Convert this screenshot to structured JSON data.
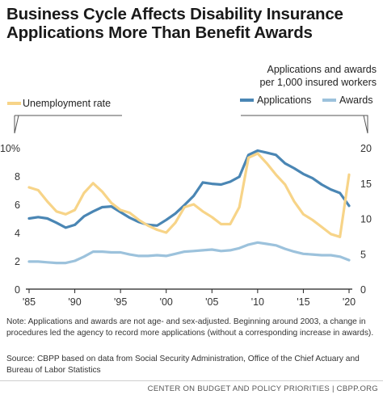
{
  "title_lines": [
    "Business Cycle Affects Disability Insurance",
    "Applications More Than Benefit Awards"
  ],
  "note": "Note: Applications and awards are not age- and sex-adjusted. Beginning around 2003, a change in procedures led the agency to record more applications (without a corresponding increase in awards).",
  "source": "Source: CBPP based on data from Social Security Administration, Office of the Chief Actuary and Bureau of Labor Statistics",
  "footer": "CENTER ON BUDGET AND POLICY PRIORITIES | CBPP.ORG",
  "colors": {
    "unemployment": "#f7d488",
    "applications": "#4a86b4",
    "awards": "#9cc2dc",
    "axis": "#222222",
    "bracket": "#555555"
  },
  "chart_data": {
    "type": "line",
    "left_axis": {
      "title": "Unemployment rate",
      "ylim": [
        0,
        10
      ],
      "ticks": [
        0,
        2,
        4,
        6,
        8,
        10
      ],
      "tick_labels": [
        "0",
        "2",
        "4",
        "6",
        "8",
        "10%"
      ]
    },
    "right_axis": {
      "title_lines": [
        "Applications and awards",
        "per 1,000 insured workers"
      ],
      "ylim": [
        0,
        20
      ],
      "ticks": [
        0,
        5,
        10,
        15,
        20
      ],
      "tick_labels": [
        "0",
        "5",
        "10",
        "15",
        "20"
      ]
    },
    "x_axis": {
      "xlim": [
        1985,
        2020
      ],
      "ticks": [
        1985,
        1990,
        1995,
        2000,
        2005,
        2010,
        2015,
        2020
      ],
      "tick_labels": [
        "'85",
        "'90",
        "'95",
        "'00",
        "'05",
        "'10",
        "'15",
        "'20"
      ]
    },
    "grid": false,
    "legend": [
      {
        "name": "Applications",
        "series": "applications"
      },
      {
        "name": "Awards",
        "series": "awards"
      }
    ],
    "x": [
      1985,
      1986,
      1987,
      1988,
      1989,
      1990,
      1991,
      1992,
      1993,
      1994,
      1995,
      1996,
      1997,
      1998,
      1999,
      2000,
      2001,
      2002,
      2003,
      2004,
      2005,
      2006,
      2007,
      2008,
      2009,
      2010,
      2011,
      2012,
      2013,
      2014,
      2015,
      2016,
      2017,
      2018,
      2019,
      2020
    ],
    "series": [
      {
        "name": "Unemployment rate",
        "key": "unemployment",
        "axis": "left",
        "values": [
          7.2,
          7.0,
          6.2,
          5.5,
          5.3,
          5.6,
          6.8,
          7.5,
          6.9,
          6.1,
          5.6,
          5.4,
          4.9,
          4.5,
          4.2,
          4.0,
          4.7,
          5.8,
          6.0,
          5.5,
          5.1,
          4.6,
          4.6,
          5.8,
          9.3,
          9.6,
          8.9,
          8.1,
          7.4,
          6.2,
          5.3,
          4.9,
          4.4,
          3.9,
          3.7,
          8.1
        ]
      },
      {
        "name": "Applications",
        "key": "applications",
        "axis": "right",
        "values": [
          10.0,
          10.2,
          10.0,
          9.4,
          8.7,
          9.1,
          10.3,
          11.0,
          11.6,
          11.7,
          10.9,
          10.1,
          9.5,
          9.1,
          9.0,
          9.8,
          10.7,
          11.9,
          13.2,
          15.1,
          14.9,
          14.8,
          15.2,
          15.9,
          19.0,
          19.6,
          19.3,
          19.0,
          17.8,
          17.1,
          16.3,
          15.7,
          14.8,
          14.1,
          13.6,
          11.8
        ]
      },
      {
        "name": "Awards",
        "key": "awards",
        "axis": "right",
        "values": [
          3.9,
          3.9,
          3.8,
          3.7,
          3.7,
          4.0,
          4.6,
          5.3,
          5.3,
          5.2,
          5.2,
          4.9,
          4.7,
          4.7,
          4.8,
          4.7,
          5.0,
          5.3,
          5.4,
          5.5,
          5.6,
          5.4,
          5.5,
          5.8,
          6.3,
          6.6,
          6.4,
          6.2,
          5.7,
          5.3,
          5.0,
          4.9,
          4.8,
          4.8,
          4.6,
          4.1
        ]
      }
    ]
  }
}
